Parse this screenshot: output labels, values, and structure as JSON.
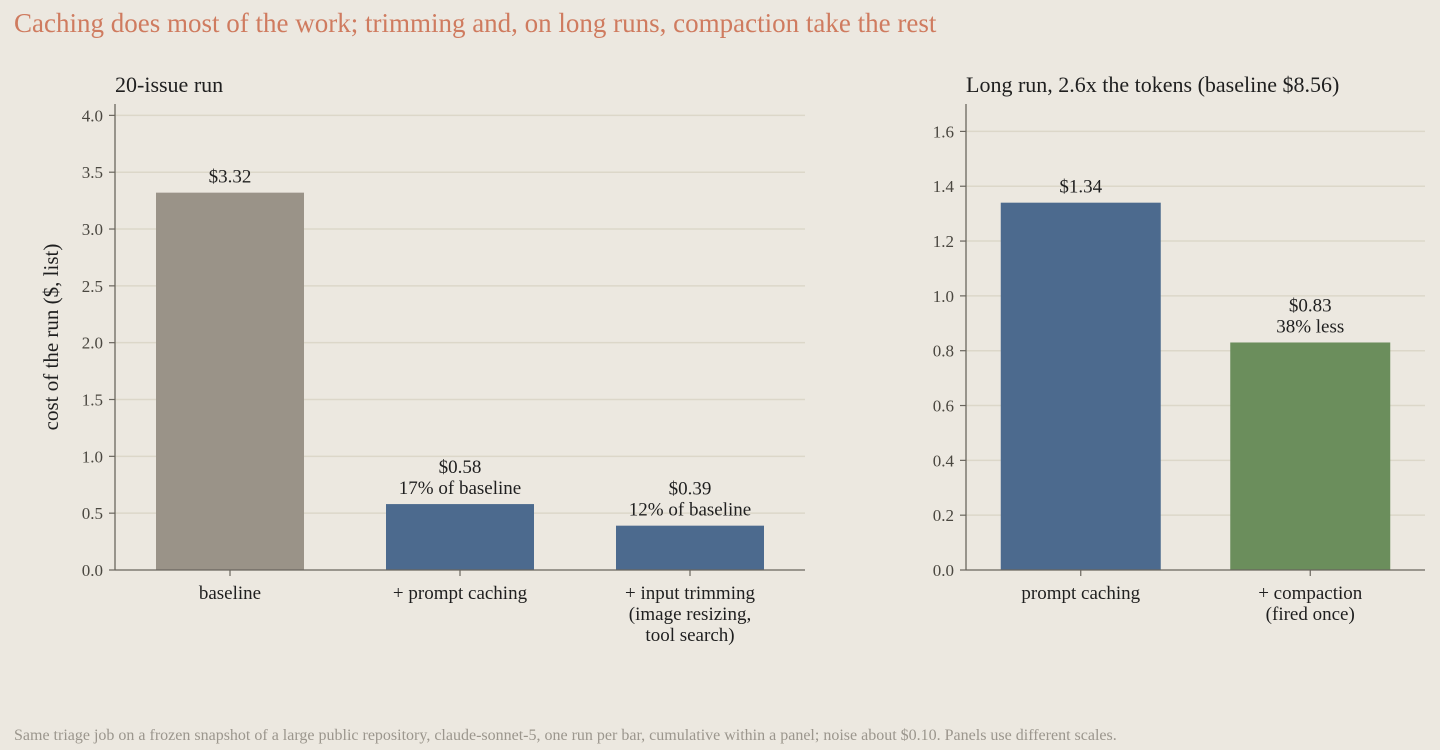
{
  "title": "Caching does most of the work; trimming and, on long runs, compaction take the rest",
  "footnote": "Same triage job on a frozen snapshot of a large public repository, claude-sonnet-5, one run per bar, cumulative within a panel; noise about $0.10. Panels use different scales.",
  "colors": {
    "background": "#ece8e0",
    "title": "#cf7b5f",
    "baseline": "#9a9388",
    "caching": "#4c6a8e",
    "compaction": "#6b8e5c",
    "grid": "#dcd7c9",
    "axis": "#6a665e"
  },
  "chart_data": [
    {
      "type": "bar",
      "title": "20-issue run",
      "ylabel": "cost of the run ($, list)",
      "ylim": [
        0,
        4.1
      ],
      "yticks": [
        "0.0",
        "0.5",
        "1.0",
        "1.5",
        "2.0",
        "2.5",
        "3.0",
        "3.5",
        "4.0"
      ],
      "ytick_values": [
        0,
        0.5,
        1.0,
        1.5,
        2.0,
        2.5,
        3.0,
        3.5,
        4.0
      ],
      "grid": true,
      "categories": [
        [
          "baseline"
        ],
        [
          "+ prompt caching"
        ],
        [
          "+ input trimming",
          "(image resizing,",
          "tool search)"
        ]
      ],
      "values": [
        3.32,
        0.58,
        0.39
      ],
      "bar_colors": [
        "#9a9388",
        "#4c6a8e",
        "#4c6a8e"
      ],
      "data_labels": [
        [
          "$3.32"
        ],
        [
          "$0.58",
          "17% of baseline"
        ],
        [
          "$0.39",
          "12% of baseline"
        ]
      ]
    },
    {
      "type": "bar",
      "title": "Long run, 2.6x the tokens (baseline $8.56)",
      "ylabel": "",
      "ylim": [
        0,
        1.7
      ],
      "yticks": [
        "0.0",
        "0.2",
        "0.4",
        "0.6",
        "0.8",
        "1.0",
        "1.2",
        "1.4",
        "1.6"
      ],
      "ytick_values": [
        0,
        0.2,
        0.4,
        0.6,
        0.8,
        1.0,
        1.2,
        1.4,
        1.6
      ],
      "grid": true,
      "categories": [
        [
          "prompt caching"
        ],
        [
          "+ compaction",
          "(fired once)"
        ]
      ],
      "values": [
        1.34,
        0.83
      ],
      "bar_colors": [
        "#4c6a8e",
        "#6b8e5c"
      ],
      "data_labels": [
        [
          "$1.34"
        ],
        [
          "$0.83",
          "38% less"
        ]
      ]
    }
  ]
}
